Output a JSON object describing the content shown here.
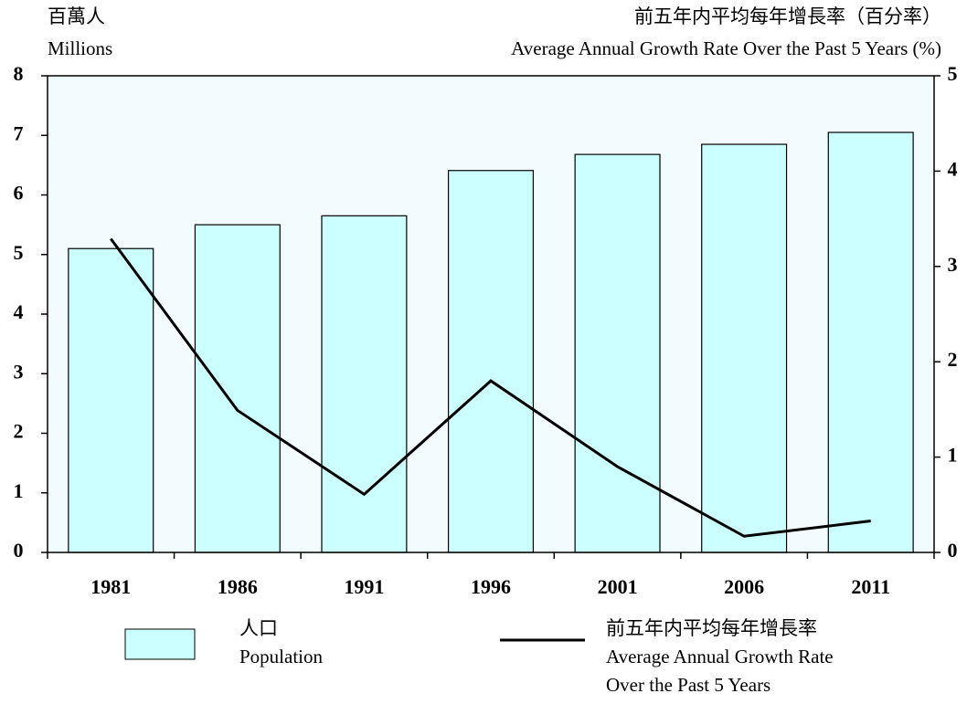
{
  "chart_data": {
    "type": "bar",
    "ylabel": [
      "百萬人",
      "Millions"
    ],
    "y2label": [
      "前五年内平均每年增長率（百分率）",
      "Average Annual Growth Rate Over the Past 5 Years (%)"
    ],
    "categories": [
      "1981",
      "1986",
      "1991",
      "1996",
      "2001",
      "2006",
      "2011"
    ],
    "series": [
      {
        "name": [
          "人口",
          "Population"
        ],
        "type": "bar",
        "color": "#ccffff",
        "values": [
          5.1,
          5.5,
          5.65,
          6.41,
          6.68,
          6.85,
          7.05
        ]
      },
      {
        "name": [
          "前五年内平均每年增長率",
          "Average Annual Growth Rate",
          "Over the Past 5 Years"
        ],
        "type": "line",
        "axis": "y2",
        "color": "#000000",
        "values": [
          3.29,
          1.49,
          0.61,
          1.8,
          0.9,
          0.17,
          0.33
        ]
      }
    ],
    "ylim": [
      0,
      8
    ],
    "yticks": [
      0,
      1,
      2,
      3,
      4,
      5,
      6,
      7,
      8
    ],
    "y2lim": [
      0,
      5
    ],
    "y2ticks": [
      0,
      1,
      2,
      3,
      4,
      5
    ]
  }
}
